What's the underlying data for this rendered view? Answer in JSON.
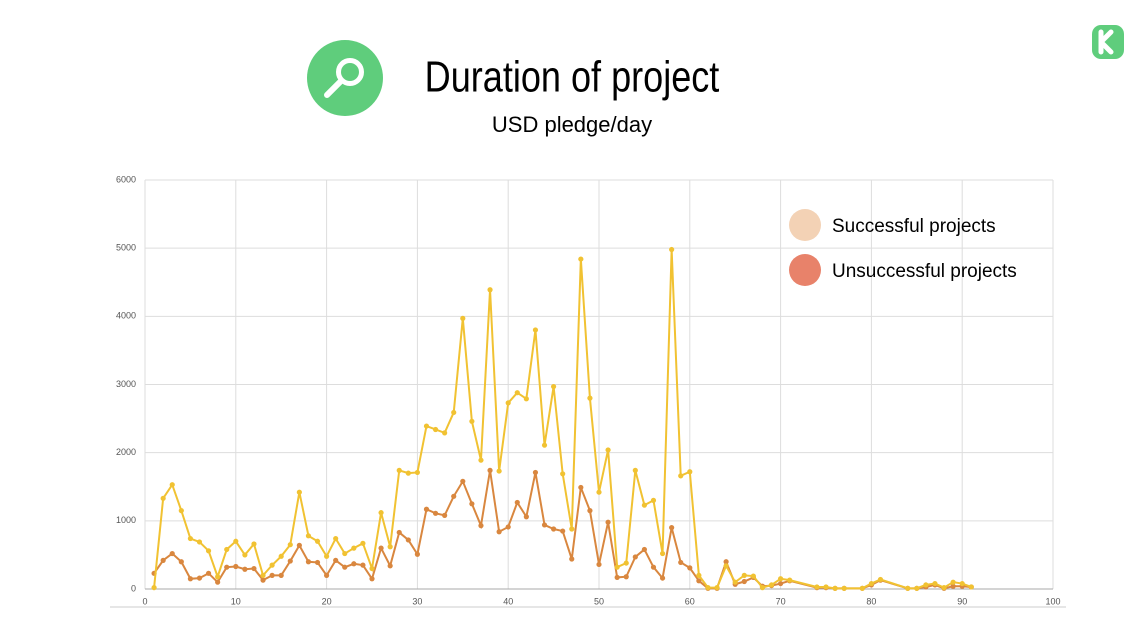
{
  "chart_data": {
    "type": "line",
    "title": "Duration of project",
    "subtitle": "USD pledge/day",
    "x": [
      1,
      2,
      3,
      4,
      5,
      6,
      7,
      8,
      9,
      10,
      11,
      12,
      13,
      14,
      15,
      16,
      17,
      18,
      19,
      20,
      21,
      22,
      23,
      24,
      25,
      26,
      27,
      28,
      29,
      30,
      31,
      32,
      33,
      34,
      35,
      36,
      37,
      38,
      39,
      40,
      41,
      42,
      43,
      44,
      45,
      46,
      47,
      48,
      49,
      50,
      51,
      52,
      53,
      54,
      55,
      56,
      57,
      58,
      59,
      60,
      61,
      62,
      63,
      64,
      65,
      66,
      67,
      68,
      69,
      70,
      71,
      74,
      75,
      76,
      77,
      79,
      80,
      81,
      84,
      85,
      86,
      87,
      88,
      89,
      90,
      91
    ],
    "series": [
      {
        "name": "Successful projects",
        "color": "#f1c232",
        "legend_color": "#f3d2b5",
        "values": [
          20,
          1330,
          1530,
          1150,
          740,
          690,
          560,
          180,
          580,
          700,
          500,
          660,
          200,
          350,
          480,
          650,
          1420,
          780,
          700,
          480,
          740,
          520,
          600,
          670,
          300,
          1120,
          620,
          1740,
          1700,
          1710,
          2390,
          2340,
          2290,
          2590,
          3970,
          2460,
          1890,
          4390,
          1730,
          2730,
          2880,
          2790,
          3800,
          2110,
          2970,
          1690,
          880,
          4840,
          2800,
          1420,
          2040,
          320,
          380,
          1740,
          1230,
          1300,
          520,
          4980,
          1660,
          1720,
          200,
          20,
          20,
          340,
          100,
          200,
          190,
          20,
          60,
          150,
          130,
          30,
          30,
          10,
          10,
          10,
          80,
          140,
          10,
          10,
          60,
          80,
          20,
          100,
          80,
          30
        ]
      },
      {
        "name": "Unsuccessful projects",
        "color": "#d9873f",
        "legend_color": "#e8826a",
        "values": [
          230,
          420,
          520,
          400,
          150,
          160,
          230,
          100,
          320,
          330,
          290,
          300,
          130,
          200,
          200,
          410,
          640,
          400,
          390,
          200,
          420,
          320,
          370,
          350,
          150,
          600,
          340,
          830,
          720,
          510,
          1170,
          1110,
          1080,
          1360,
          1580,
          1250,
          930,
          1740,
          840,
          910,
          1270,
          1060,
          1710,
          940,
          880,
          850,
          440,
          1490,
          1150,
          360,
          980,
          170,
          180,
          470,
          580,
          320,
          160,
          900,
          390,
          310,
          120,
          10,
          10,
          400,
          70,
          110,
          170,
          40,
          50,
          80,
          120,
          20,
          20,
          10,
          10,
          10,
          60,
          130,
          10,
          10,
          30,
          60,
          10,
          40,
          40,
          30
        ]
      }
    ],
    "xlim": [
      0,
      100
    ],
    "xticks": [
      0,
      10,
      20,
      30,
      40,
      50,
      60,
      70,
      80,
      90,
      100
    ],
    "ylim": [
      0,
      6000
    ],
    "yticks": [
      0,
      1000,
      2000,
      3000,
      4000,
      5000,
      6000
    ],
    "grid": true,
    "legend": "upper right"
  }
}
